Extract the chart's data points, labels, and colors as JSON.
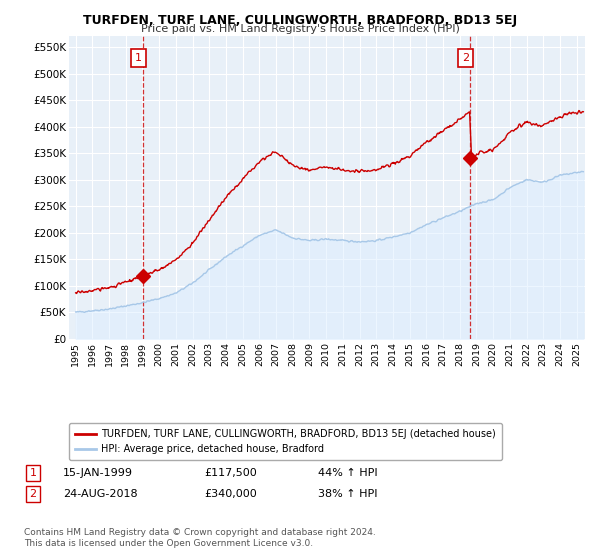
{
  "title": "TURFDEN, TURF LANE, CULLINGWORTH, BRADFORD, BD13 5EJ",
  "subtitle": "Price paid vs. HM Land Registry's House Price Index (HPI)",
  "ylabel_ticks": [
    "£0",
    "£50K",
    "£100K",
    "£150K",
    "£200K",
    "£250K",
    "£300K",
    "£350K",
    "£400K",
    "£450K",
    "£500K",
    "£550K"
  ],
  "ytick_values": [
    0,
    50000,
    100000,
    150000,
    200000,
    250000,
    300000,
    350000,
    400000,
    450000,
    500000,
    550000
  ],
  "ylim": [
    0,
    570000
  ],
  "hpi_color": "#a8c8e8",
  "hpi_fill_color": "#ddeeff",
  "price_color": "#cc0000",
  "vline_color": "#cc0000",
  "bg_color": "#ffffff",
  "plot_bg_color": "#e8f0f8",
  "grid_color": "#ffffff",
  "annotation1": {
    "label": "1",
    "date": "15-JAN-1999",
    "price": "£117,500",
    "change": "44% ↑ HPI"
  },
  "annotation2": {
    "label": "2",
    "date": "24-AUG-2018",
    "price": "£340,000",
    "change": "38% ↑ HPI"
  },
  "legend_line1": "TURFDEN, TURF LANE, CULLINGWORTH, BRADFORD, BD13 5EJ (detached house)",
  "legend_line2": "HPI: Average price, detached house, Bradford",
  "footnote": "Contains HM Land Registry data © Crown copyright and database right 2024.\nThis data is licensed under the Open Government Licence v3.0.",
  "sale1_year": 1999.04,
  "sale1_price": 117500,
  "sale2_year": 2018.64,
  "sale2_price": 340000,
  "xstart_year": 1994.6,
  "xend_year": 2025.5
}
